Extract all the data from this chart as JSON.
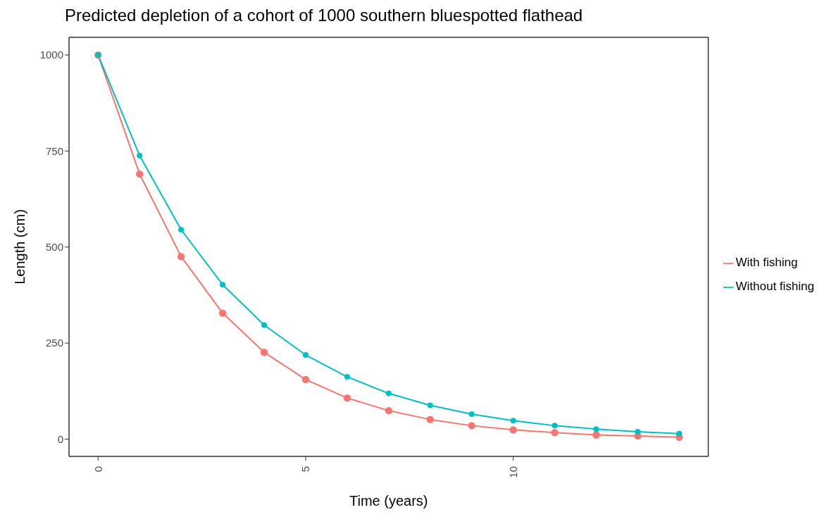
{
  "chart_data": {
    "type": "line",
    "title": "Predicted depletion of a cohort of 1000 southern bluespotted flathead",
    "xlabel": "Time (years)",
    "ylabel": "Length (cm)",
    "x": [
      0,
      1,
      2,
      3,
      4,
      5,
      6,
      7,
      8,
      9,
      10,
      11,
      12,
      13,
      14
    ],
    "series": [
      {
        "name": "With fishing",
        "color": "#f8766d",
        "values": [
          1000,
          690,
          475,
          328,
          226,
          155,
          107,
          74,
          51,
          35,
          24,
          17,
          11,
          8,
          5
        ]
      },
      {
        "name": "Without fishing",
        "color": "#00bfc4",
        "values": [
          1000,
          738,
          545,
          402,
          297,
          219,
          162,
          119,
          88,
          65,
          48,
          35,
          26,
          19,
          14
        ]
      }
    ],
    "xlim": [
      -0.7,
      14.7
    ],
    "ylim": [
      -45,
      1046
    ],
    "xticks": [
      0,
      5,
      10
    ],
    "yticks": [
      0,
      250,
      500,
      750,
      1000
    ],
    "legend": "right",
    "marker": "circle",
    "line_style": "solid"
  }
}
